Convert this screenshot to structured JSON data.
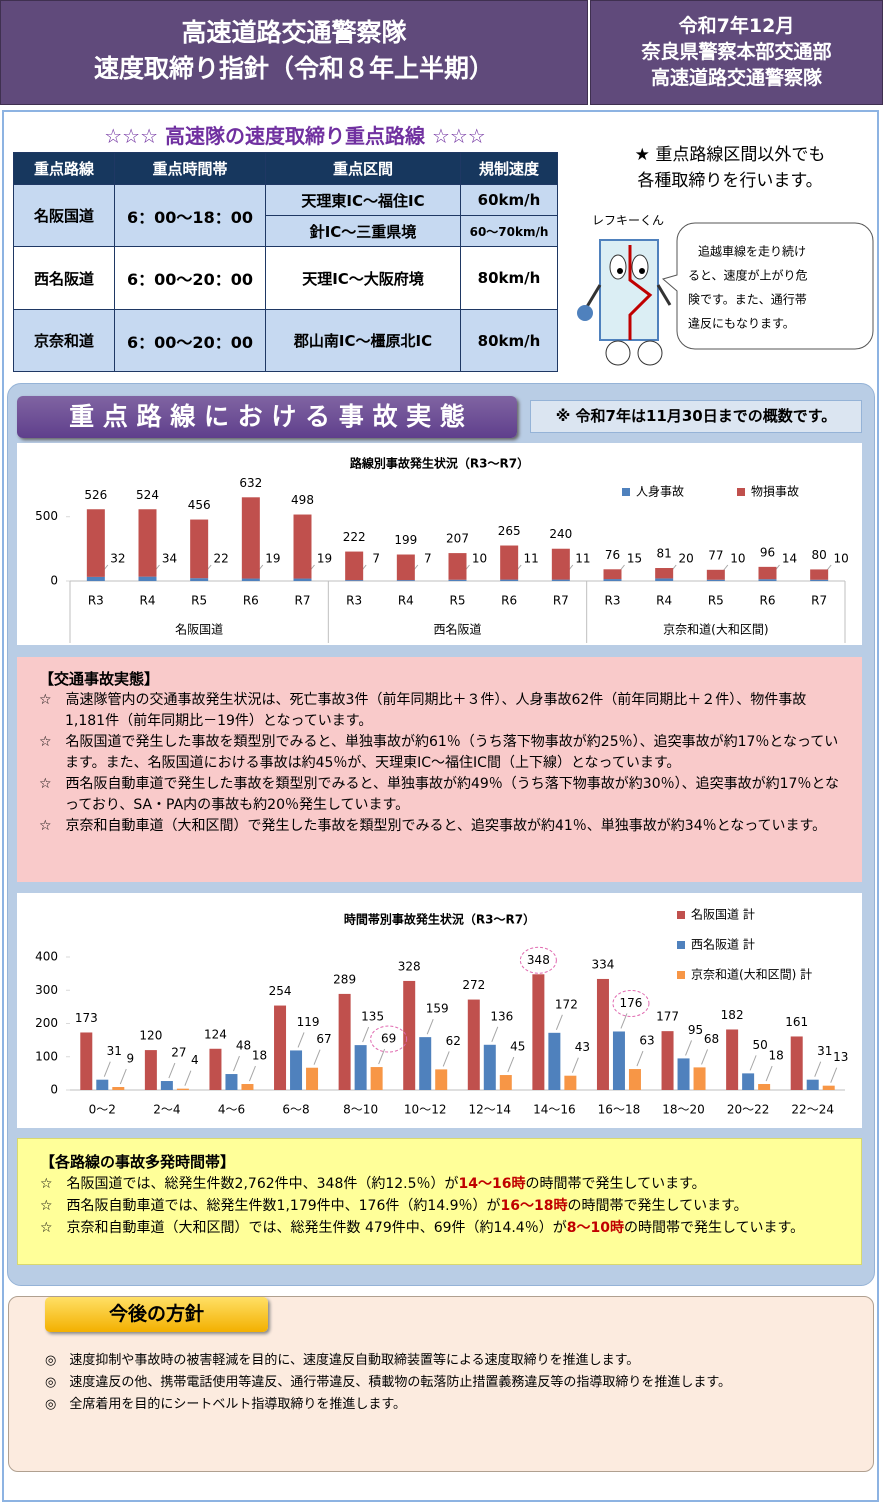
{
  "header": {
    "title_lines": [
      "高速道路交通警察隊",
      "速度取締り指針（令和８年上半期）"
    ],
    "org_lines": [
      "令和7年12月",
      "奈良県警察本部交通部",
      "高速道路交通警察隊"
    ]
  },
  "routes": {
    "title": "☆☆☆ 高速隊の速度取締り重点路線 ☆☆☆",
    "columns": [
      "重点路線",
      "重点時間帯",
      "重点区間",
      "規制速度"
    ],
    "rows": [
      {
        "route": "名阪国道",
        "hours": "6：00～18：00",
        "sections": [
          {
            "section": "天理東IC～福住IC",
            "limit": "60km/h"
          },
          {
            "section": "針IC～三重県境",
            "limit": "60～70km/h"
          }
        ]
      },
      {
        "route": "西名阪道",
        "hours": "6：00～20：00",
        "sections": [
          {
            "section": "天理IC～大阪府境",
            "limit": "80km/h"
          }
        ]
      },
      {
        "route": "京奈和道",
        "hours": "6：00～20：00",
        "sections": [
          {
            "section": "郡山南IC～橿原北IC",
            "limit": "80km/h"
          }
        ]
      }
    ]
  },
  "note": [
    "★ 重点路線区間以外でも",
    "各種取締りを行います。"
  ],
  "mascot": {
    "name": "レフキーくん",
    "speech": [
      "追越車線を走り続け",
      "ると、速度が上がり危",
      "険です。また、通行帯",
      "違反にもなります。"
    ]
  },
  "section": {
    "title": "重 点 路 線 に お け る 事 故 実 態",
    "note": "※ 令和7年は11月30日までの概数です。"
  },
  "chart_data": [
    {
      "type": "bar",
      "stacked": true,
      "title": "路線別事故発生状況（R3～R7）",
      "categories": [
        "R3",
        "R4",
        "R5",
        "R6",
        "R7",
        "R3",
        "R4",
        "R5",
        "R6",
        "R7",
        "R3",
        "R4",
        "R5",
        "R6",
        "R7"
      ],
      "groups": [
        "名阪国道",
        "西名阪道",
        "京奈和道(大和区間)"
      ],
      "series": [
        {
          "name": "人身事故",
          "color": "#4f81bd",
          "values": [
            32,
            34,
            22,
            19,
            19,
            7,
            7,
            10,
            11,
            11,
            15,
            20,
            10,
            14,
            10
          ]
        },
        {
          "name": "物損事故",
          "color": "#c0504d",
          "values": [
            526,
            524,
            456,
            632,
            498,
            222,
            199,
            207,
            265,
            240,
            76,
            81,
            77,
            96,
            80
          ]
        }
      ],
      "ylim": [
        0,
        700
      ],
      "yticks": [
        0,
        500
      ],
      "legend": "top-right"
    },
    {
      "type": "bar",
      "stacked": false,
      "title": "時間帯別事故発生状況（R3～R7）",
      "categories": [
        "0～2",
        "2～4",
        "4～6",
        "6～8",
        "8～10",
        "10～12",
        "12～14",
        "14～16",
        "16～18",
        "18～20",
        "20～22",
        "22～24"
      ],
      "series": [
        {
          "name": "名阪国道 計",
          "color": "#c0504d",
          "values": [
            173,
            120,
            124,
            254,
            289,
            328,
            272,
            348,
            334,
            177,
            182,
            161
          ]
        },
        {
          "name": "西名阪道 計",
          "color": "#4f81bd",
          "values": [
            31,
            27,
            48,
            119,
            135,
            159,
            136,
            172,
            176,
            95,
            50,
            31
          ]
        },
        {
          "name": "京奈和道(大和区間) 計",
          "color": "#f79646",
          "values": [
            9,
            4,
            18,
            67,
            69,
            62,
            45,
            43,
            63,
            68,
            18,
            13
          ]
        }
      ],
      "ylim": [
        0,
        400
      ],
      "yticks": [
        0,
        100,
        200,
        300,
        400
      ],
      "legend": "right",
      "circled": [
        {
          "series": 0,
          "index": 7
        },
        {
          "series": 1,
          "index": 8
        },
        {
          "series": 2,
          "index": 4
        }
      ]
    }
  ],
  "accident_facts": {
    "title": "【交通事故実態】",
    "items": [
      "☆　高速隊管内の交通事故発生状況は、死亡事故3件（前年同期比＋３件）、人身事故62件（前年同期比＋２件）、物件事故 1,181件（前年同期比－19件）となっています。",
      "☆　名阪国道で発生した事故を類型別でみると、単独事故が約61％（うち落下物事故が約25％）、追突事故が約17％となっています。また、名阪国道における事故は約45％が、天理東IC～福住IC間（上下線）となっています。",
      "☆　西名阪自動車道で発生した事故を類型別でみると、単独事故が約49％（うち落下物事故が約30％）、追突事故が約17％となっており、SA・PA内の事故も約20％発生しています。",
      "☆　京奈和自動車道（大和区間）で発生した事故を類型別でみると、追突事故が約41％、単独事故が約34％となっています。"
    ]
  },
  "time_facts": {
    "title": "【各路線の事故多発時間帯】",
    "items": [
      [
        "☆　名阪国道では、総発生件数2,762件中、348件（約12.5％）が",
        "14～16時",
        "の時間帯で発生しています。"
      ],
      [
        "☆　西名阪自動車道では、総発生件数1,179件中、176件（約14.9％）が",
        "16～18時",
        "の時間帯で発生しています。"
      ],
      [
        "☆　京奈和自動車道（大和区間）では、総発生件数 479件中、69件（約14.4％）が",
        "8～10時",
        "の時間帯で発生しています。"
      ]
    ]
  },
  "policy": {
    "title": "今後の方針",
    "items": [
      "◎　速度抑制や事故時の被害軽減を目的に、速度違反自動取締装置等による速度取締りを推進します。",
      "◎　速度違反の他、携帯電話使用等違反、通行帯違反、積載物の転落防止措置義務違反等の指導取締りを推進します。",
      "◎　全席着用を目的にシートベルト指導取締りを推進します。"
    ]
  }
}
